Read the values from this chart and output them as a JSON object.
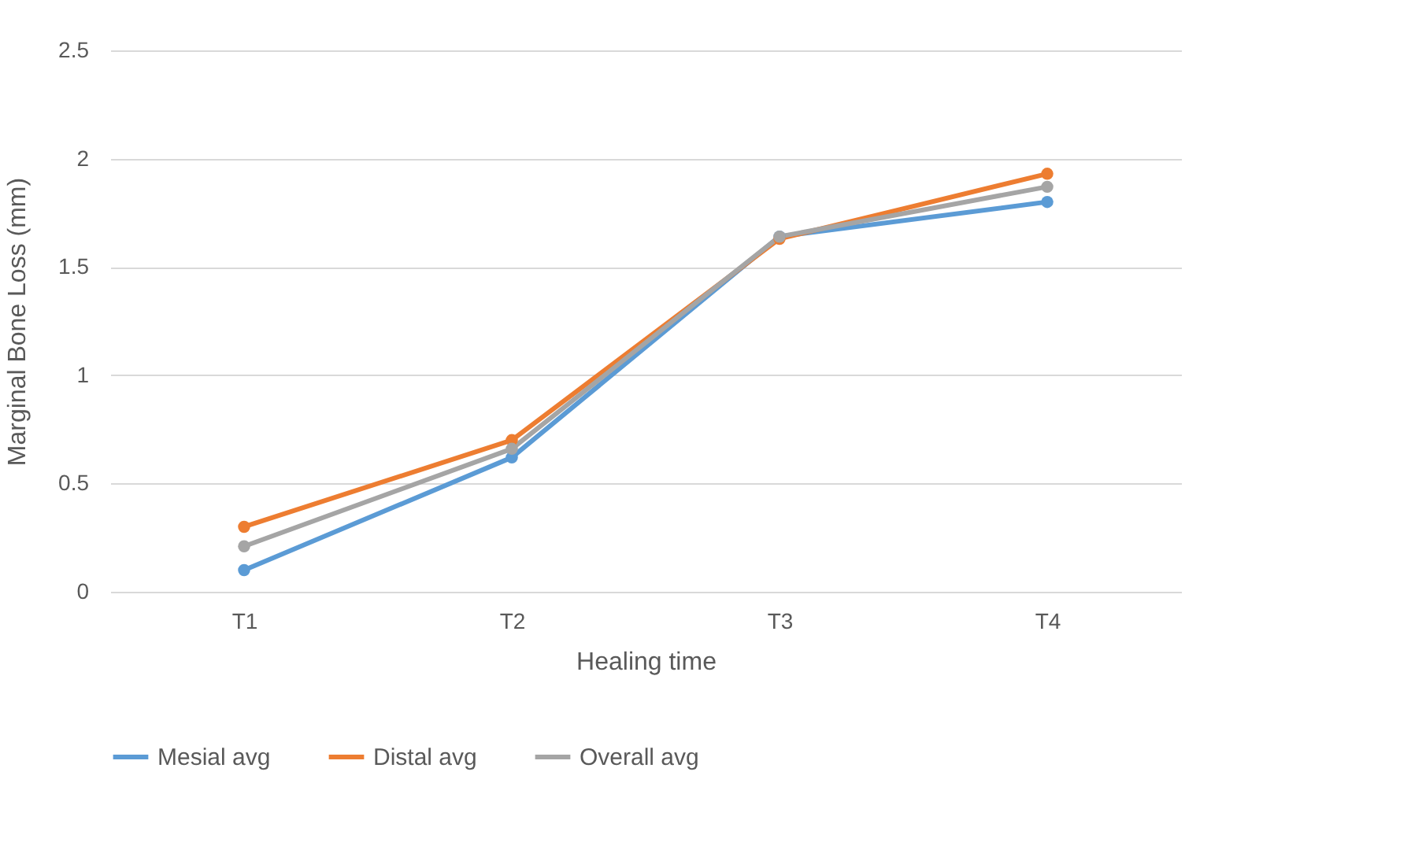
{
  "chart_data": {
    "type": "line",
    "xlabel": "Healing time",
    "ylabel": "Marginal Bone Loss (mm)",
    "categories": [
      "T1",
      "T2",
      "T3",
      "T4"
    ],
    "series": [
      {
        "name": "Mesial avg",
        "color": "#5b9bd5",
        "values": [
          0.1,
          0.62,
          1.64,
          1.8
        ]
      },
      {
        "name": "Distal avg",
        "color": "#ed7d31",
        "values": [
          0.3,
          0.7,
          1.63,
          1.93
        ]
      },
      {
        "name": "Overall avg",
        "color": "#a5a5a5",
        "values": [
          0.21,
          0.66,
          1.64,
          1.87
        ]
      }
    ],
    "ylim": [
      0,
      2.5
    ],
    "yticks": [
      0,
      0.5,
      1,
      1.5,
      2,
      2.5
    ],
    "grid": "y",
    "legend": "bottom",
    "marker": "circle"
  }
}
